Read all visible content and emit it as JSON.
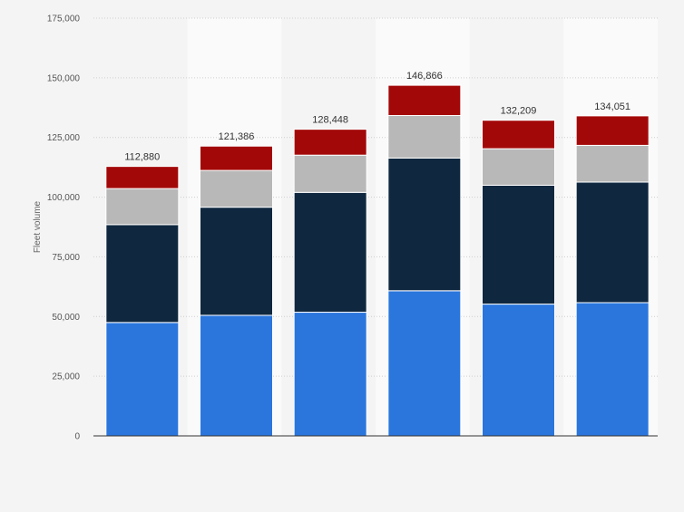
{
  "chart_data": {
    "type": "bar",
    "stacked": true,
    "categories": [
      "",
      "",
      "",
      "",
      "",
      ""
    ],
    "series": [
      {
        "values": [
          47500,
          50500,
          51800,
          60800,
          55200,
          55800
        ],
        "color": "#2a76dd"
      },
      {
        "values": [
          41000,
          45300,
          50200,
          55600,
          49800,
          50500
        ],
        "color": "#0f2840"
      },
      {
        "values": [
          15100,
          15400,
          15600,
          17800,
          15300,
          15400
        ],
        "color": "#b8b8b8"
      },
      {
        "values": [
          9280,
          10186,
          10848,
          12666,
          11909,
          12351
        ],
        "color": "#a30808"
      }
    ],
    "totals": [
      112880,
      121386,
      128448,
      146866,
      132209,
      134051
    ],
    "total_labels": [
      "112,880",
      "121,386",
      "128,448",
      "146,866",
      "132,209",
      "134,051"
    ],
    "ylabel": "Fleet volume",
    "ylim": [
      0,
      175000
    ],
    "yticks": [
      0,
      25000,
      50000,
      75000,
      100000,
      125000,
      150000,
      175000
    ],
    "ytick_labels": [
      "0",
      "25,000",
      "50,000",
      "75,000",
      "100,000",
      "125,000",
      "150,000",
      "175,000"
    ],
    "grid": true,
    "legend": "none"
  }
}
